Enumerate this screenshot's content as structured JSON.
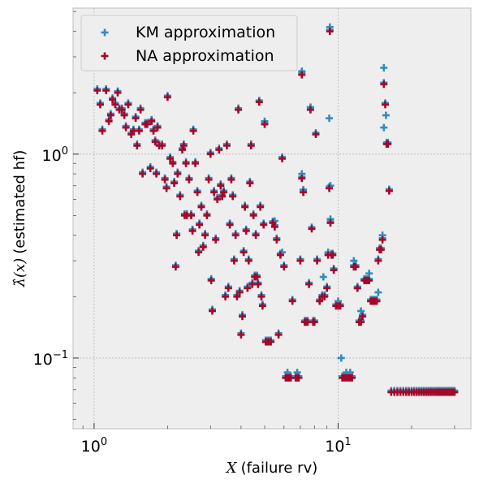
{
  "chart_data": {
    "type": "scatter",
    "x_scale": "log",
    "y_scale": "log",
    "xlim": [
      0.82,
      35
    ],
    "ylim": [
      0.045,
      5.2
    ],
    "xlabel_math": "X",
    "xlabel_text": "(failure rv)",
    "ylabel_math": "λ̂(x)",
    "ylabel_text": "(estimated hf)",
    "x_major_ticks": [
      {
        "value": 1,
        "base": "10",
        "exp": "0"
      },
      {
        "value": 10,
        "base": "10",
        "exp": "1"
      }
    ],
    "y_major_ticks": [
      {
        "value": 0.1,
        "base": "10",
        "exp": "−1"
      },
      {
        "value": 1,
        "base": "10",
        "exp": "0"
      }
    ],
    "grid": true,
    "legend_placement": "upper-left",
    "series": [
      {
        "name": "KM approximation",
        "color": "#348ABD",
        "marker": "plus"
      },
      {
        "name": "NA approximation",
        "color": "#A60628",
        "marker": "plus"
      }
    ],
    "points_na": [
      [
        1.03,
        2.05
      ],
      [
        1.06,
        1.75
      ],
      [
        1.08,
        1.3
      ],
      [
        1.12,
        2.05
      ],
      [
        1.15,
        1.45
      ],
      [
        1.17,
        1.55
      ],
      [
        1.19,
        1.85
      ],
      [
        1.22,
        1.75
      ],
      [
        1.25,
        2.0
      ],
      [
        1.27,
        1.65
      ],
      [
        1.3,
        1.65
      ],
      [
        1.33,
        1.55
      ],
      [
        1.35,
        1.35
      ],
      [
        1.38,
        1.75
      ],
      [
        1.42,
        1.25
      ],
      [
        1.45,
        1.3
      ],
      [
        1.48,
        1.5
      ],
      [
        1.5,
        1.1
      ],
      [
        1.53,
        1.3
      ],
      [
        1.55,
        1.65
      ],
      [
        1.58,
        0.8
      ],
      [
        1.62,
        1.4
      ],
      [
        1.65,
        1.4
      ],
      [
        1.7,
        0.85
      ],
      [
        1.72,
        1.45
      ],
      [
        1.75,
        1.3
      ],
      [
        1.78,
        1.15
      ],
      [
        1.8,
        0.8
      ],
      [
        1.82,
        1.35
      ],
      [
        1.85,
        1.1
      ],
      [
        1.9,
        1.1
      ],
      [
        1.95,
        0.75
      ],
      [
        1.98,
        0.68
      ],
      [
        2.0,
        1.9
      ],
      [
        2.05,
        0.95
      ],
      [
        2.1,
        0.9
      ],
      [
        2.13,
        0.72
      ],
      [
        2.16,
        0.28
      ],
      [
        2.18,
        0.4
      ],
      [
        2.2,
        0.8
      ],
      [
        2.25,
        0.62
      ],
      [
        2.3,
        1.05
      ],
      [
        2.33,
        1.1
      ],
      [
        2.35,
        0.5
      ],
      [
        2.38,
        0.9
      ],
      [
        2.4,
        0.5
      ],
      [
        2.45,
        0.75
      ],
      [
        2.5,
        0.5
      ],
      [
        2.53,
        0.42
      ],
      [
        2.55,
        1.3
      ],
      [
        2.6,
        0.9
      ],
      [
        2.65,
        0.65
      ],
      [
        2.68,
        0.33
      ],
      [
        2.7,
        0.45
      ],
      [
        2.75,
        0.55
      ],
      [
        2.8,
        0.35
      ],
      [
        2.85,
        0.4
      ],
      [
        2.9,
        0.5
      ],
      [
        2.95,
        0.75
      ],
      [
        3.0,
        1.0
      ],
      [
        3.02,
        0.24
      ],
      [
        3.05,
        0.17
      ],
      [
        3.1,
        0.65
      ],
      [
        3.15,
        0.38
      ],
      [
        3.2,
        0.6
      ],
      [
        3.25,
        1.05
      ],
      [
        3.3,
        0.7
      ],
      [
        3.35,
        0.62
      ],
      [
        3.4,
        0.65
      ],
      [
        3.45,
        0.2
      ],
      [
        3.5,
        1.1
      ],
      [
        3.55,
        0.22
      ],
      [
        3.6,
        0.45
      ],
      [
        3.65,
        0.75
      ],
      [
        3.7,
        0.62
      ],
      [
        3.75,
        0.3
      ],
      [
        3.8,
        0.4
      ],
      [
        3.85,
        0.2
      ],
      [
        3.9,
        1.65
      ],
      [
        3.95,
        0.21
      ],
      [
        4.0,
        0.13
      ],
      [
        4.05,
        0.16
      ],
      [
        4.1,
        0.33
      ],
      [
        4.15,
        0.55
      ],
      [
        4.2,
        0.42
      ],
      [
        4.25,
        0.22
      ],
      [
        4.3,
        0.3
      ],
      [
        4.35,
        0.72
      ],
      [
        4.4,
        1.1
      ],
      [
        4.45,
        0.23
      ],
      [
        4.5,
        0.5
      ],
      [
        4.55,
        0.25
      ],
      [
        4.6,
        0.4
      ],
      [
        4.65,
        0.25
      ],
      [
        4.7,
        0.23
      ],
      [
        4.75,
        1.8
      ],
      [
        4.8,
        0.55
      ],
      [
        4.85,
        0.2
      ],
      [
        4.9,
        0.18
      ],
      [
        4.95,
        0.45
      ],
      [
        5.0,
        1.4
      ],
      [
        5.05,
        0.12
      ],
      [
        5.1,
        0.12
      ],
      [
        5.2,
        0.12
      ],
      [
        5.3,
        0.12
      ],
      [
        5.4,
        0.46
      ],
      [
        5.5,
        0.44
      ],
      [
        5.6,
        0.38
      ],
      [
        5.7,
        0.13
      ],
      [
        5.8,
        0.32
      ],
      [
        5.9,
        0.95
      ],
      [
        6.0,
        0.28
      ],
      [
        6.1,
        0.08
      ],
      [
        6.2,
        0.08
      ],
      [
        6.3,
        0.08
      ],
      [
        6.4,
        0.08
      ],
      [
        6.5,
        0.19
      ],
      [
        6.7,
        0.08
      ],
      [
        6.8,
        0.08
      ],
      [
        6.9,
        0.08
      ],
      [
        7.0,
        0.3
      ],
      [
        7.1,
        0.76
      ],
      [
        7.2,
        0.65
      ],
      [
        7.3,
        0.15
      ],
      [
        7.4,
        0.15
      ],
      [
        7.5,
        0.15
      ],
      [
        7.6,
        0.23
      ],
      [
        7.7,
        1.65
      ],
      [
        7.8,
        0.43
      ],
      [
        7.9,
        0.15
      ],
      [
        8.0,
        0.15
      ],
      [
        8.1,
        1.25
      ],
      [
        8.2,
        0.3
      ],
      [
        8.4,
        0.19
      ],
      [
        8.6,
        0.2
      ],
      [
        8.8,
        0.2
      ],
      [
        9.0,
        0.22
      ],
      [
        9.1,
        0.32
      ],
      [
        9.2,
        0.68
      ],
      [
        9.3,
        0.46
      ],
      [
        9.4,
        0.32
      ],
      [
        9.5,
        0.32
      ],
      [
        9.6,
        0.27
      ],
      [
        9.8,
        0.18
      ],
      [
        10.0,
        0.18
      ],
      [
        10.2,
        0.18
      ],
      [
        10.4,
        0.08
      ],
      [
        10.6,
        0.08
      ],
      [
        10.8,
        0.08
      ],
      [
        11.0,
        0.08
      ],
      [
        11.2,
        0.08
      ],
      [
        11.4,
        0.08
      ],
      [
        11.6,
        0.28
      ],
      [
        11.8,
        0.28
      ],
      [
        12.0,
        0.22
      ],
      [
        12.2,
        0.15
      ],
      [
        12.4,
        0.15
      ],
      [
        12.6,
        0.16
      ],
      [
        12.8,
        0.24
      ],
      [
        13.0,
        0.24
      ],
      [
        13.2,
        0.24
      ],
      [
        13.4,
        0.24
      ],
      [
        13.6,
        0.19
      ],
      [
        13.8,
        0.19
      ],
      [
        14.0,
        0.19
      ],
      [
        14.2,
        0.19
      ],
      [
        14.4,
        0.19
      ],
      [
        14.6,
        0.3
      ],
      [
        14.8,
        0.34
      ],
      [
        15.0,
        0.34
      ],
      [
        15.2,
        0.38
      ],
      [
        15.4,
        2.2
      ],
      [
        15.6,
        1.75
      ],
      [
        15.8,
        1.12
      ],
      [
        16.0,
        1.12
      ],
      [
        16.2,
        0.66
      ],
      [
        16.5,
        0.068
      ],
      [
        17.0,
        0.068
      ],
      [
        17.5,
        0.068
      ],
      [
        18.0,
        0.068
      ],
      [
        18.5,
        0.068
      ],
      [
        19.0,
        0.068
      ],
      [
        19.5,
        0.068
      ],
      [
        20.0,
        0.068
      ],
      [
        20.5,
        0.068
      ],
      [
        21.0,
        0.068
      ],
      [
        21.5,
        0.068
      ],
      [
        22.0,
        0.068
      ],
      [
        22.5,
        0.068
      ],
      [
        23.0,
        0.068
      ],
      [
        23.5,
        0.068
      ],
      [
        24.0,
        0.068
      ],
      [
        24.5,
        0.068
      ],
      [
        25.0,
        0.068
      ],
      [
        25.5,
        0.068
      ],
      [
        26.0,
        0.068
      ],
      [
        26.5,
        0.068
      ],
      [
        27.0,
        0.068
      ],
      [
        27.5,
        0.068
      ],
      [
        28.0,
        0.068
      ],
      [
        28.5,
        0.068
      ],
      [
        29.0,
        0.068
      ],
      [
        29.5,
        0.068
      ],
      [
        30.0,
        0.068
      ],
      [
        9.25,
        4.0
      ],
      [
        7.1,
        2.45
      ]
    ],
    "points_km_extra": [
      [
        9.25,
        4.2
      ],
      [
        7.1,
        2.55
      ],
      [
        15.4,
        2.65
      ],
      [
        15.7,
        1.55
      ],
      [
        15.4,
        1.35
      ],
      [
        15.2,
        0.4
      ],
      [
        9.2,
        1.5
      ],
      [
        7.7,
        1.7
      ],
      [
        9.3,
        0.7
      ],
      [
        10.3,
        0.1
      ],
      [
        11.6,
        0.3
      ],
      [
        12.4,
        0.17
      ],
      [
        13.4,
        0.26
      ],
      [
        14.6,
        0.21
      ],
      [
        10.0,
        0.19
      ],
      [
        12.0,
        0.22
      ],
      [
        6.2,
        0.085
      ],
      [
        6.8,
        0.085
      ],
      [
        10.8,
        0.085
      ],
      [
        11.2,
        0.085
      ],
      [
        9.1,
        0.33
      ],
      [
        8.7,
        0.25
      ],
      [
        7.1,
        0.8
      ],
      [
        7.2,
        0.67
      ],
      [
        5.0,
        1.45
      ],
      [
        4.8,
        0.56
      ],
      [
        5.5,
        0.47
      ],
      [
        5.9,
        0.33
      ],
      [
        9.3,
        0.48
      ]
    ]
  }
}
